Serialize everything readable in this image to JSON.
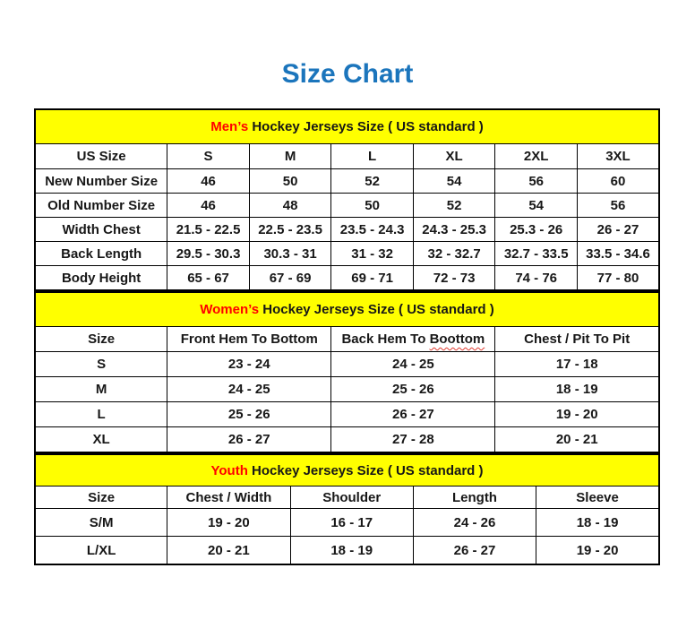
{
  "page": {
    "title": "Size Chart"
  },
  "colors": {
    "title_blue": "#1b75bc",
    "band_yellow": "#ffff00",
    "accent_red": "#ff0000"
  },
  "tables": [
    {
      "id": "mens",
      "header_accent": "Men’s",
      "header_rest": " Hockey Jerseys Size ( US standard )",
      "columns": [
        "US Size",
        "S",
        "M",
        "L",
        "XL",
        "2XL",
        "3XL"
      ],
      "rows": [
        [
          "New Number Size",
          "46",
          "50",
          "52",
          "54",
          "56",
          "60"
        ],
        [
          "Old Number Size",
          "46",
          "48",
          "50",
          "52",
          "54",
          "56"
        ],
        [
          "Width Chest",
          "21.5 - 22.5",
          "22.5 - 23.5",
          "23.5 - 24.3",
          "24.3 - 25.3",
          "25.3 - 26",
          "26 - 27"
        ],
        [
          "Back Length",
          "29.5 - 30.3",
          "30.3 - 31",
          "31 - 32",
          "32 - 32.7",
          "32.7 - 33.5",
          "33.5 - 34.6"
        ],
        [
          "Body Height",
          "65 - 67",
          "67 - 69",
          "69 - 71",
          "72 - 73",
          "74 - 76",
          "77 - 80"
        ]
      ]
    },
    {
      "id": "womens",
      "header_accent": "Women’s",
      "header_rest": " Hockey Jerseys Size ( US standard )",
      "columns": [
        "Size",
        "Front Hem To Bottom",
        "Back Hem To Boottom",
        "Chest / Pit To Pit"
      ],
      "misspelled_word": "Boottom",
      "rows": [
        [
          "S",
          "23 - 24",
          "24 - 25",
          "17 - 18"
        ],
        [
          "M",
          "24 - 25",
          "25 - 26",
          "18 - 19"
        ],
        [
          "L",
          "25 - 26",
          "26 - 27",
          "19 - 20"
        ],
        [
          "XL",
          "26 - 27",
          "27 - 28",
          "20 - 21"
        ]
      ]
    },
    {
      "id": "youth",
      "header_accent": "Youth",
      "header_rest": " Hockey Jerseys Size ( US standard )",
      "columns": [
        "Size",
        "Chest / Width",
        "Shoulder",
        "Length",
        "Sleeve"
      ],
      "rows": [
        [
          "S/M",
          "19 - 20",
          "16 - 17",
          "24 - 26",
          "18 - 19"
        ],
        [
          "L/XL",
          "20 - 21",
          "18 - 19",
          "26 - 27",
          "19 - 20"
        ]
      ]
    }
  ]
}
